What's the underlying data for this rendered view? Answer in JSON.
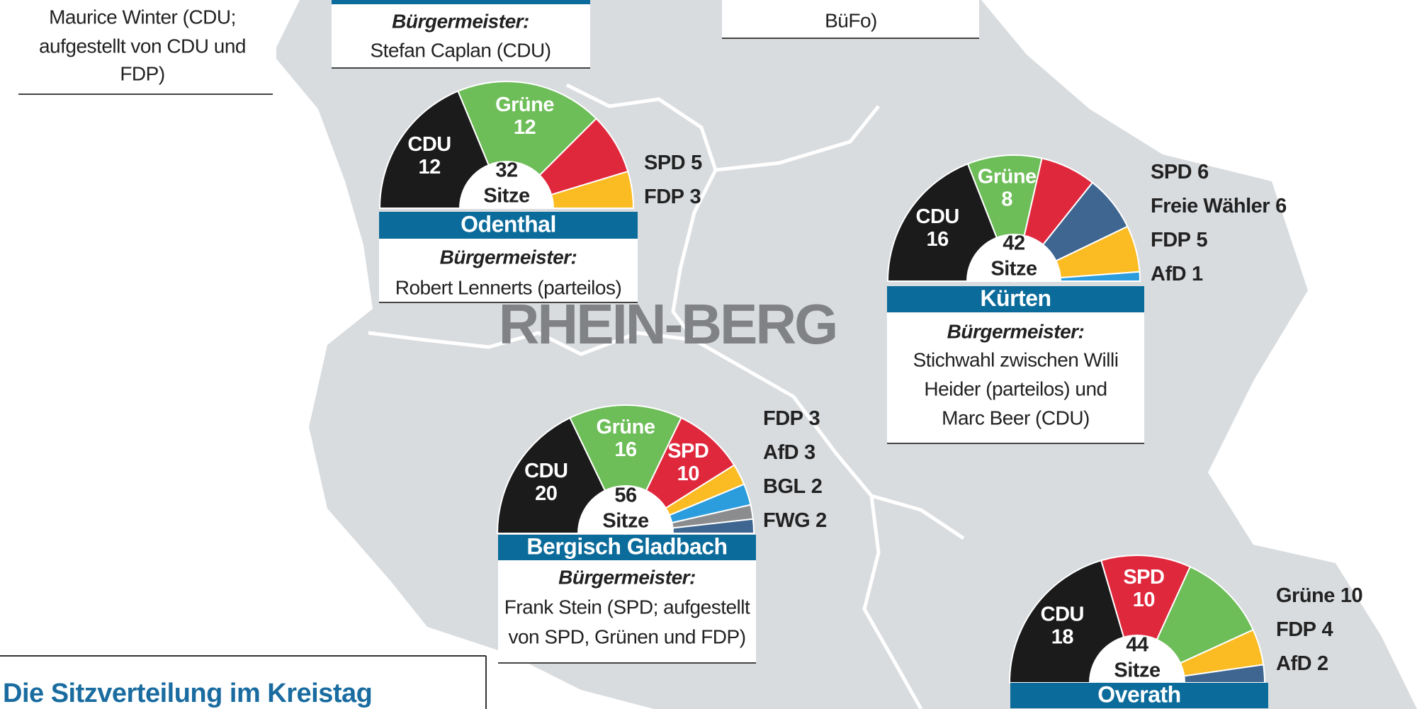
{
  "map_label": "RHEIN-BERG",
  "top_left": {
    "lines": [
      "Maurice Winter (CDU;",
      "aufgestellt von CDU und",
      "FDP)"
    ]
  },
  "top_center": {
    "mayor_heading": "Bürgermeister:",
    "mayor": "Stefan Caplan (CDU)"
  },
  "top_right": {
    "lines": [
      "BüFo)"
    ]
  },
  "kreistag_title": "Die Sitzverteilung im Kreistag",
  "chart_data": [
    {
      "type": "semicircle",
      "title": "Odenthal",
      "total": 32,
      "total_label": "Sitze",
      "categories": [
        "CDU",
        "Grüne",
        "SPD",
        "FDP"
      ],
      "values": [
        12,
        12,
        5,
        3
      ],
      "colors": [
        "#1b1b1b",
        "#6dbd58",
        "#e0283d",
        "#fbbb22"
      ],
      "mayor_heading": "Bürgermeister:",
      "mayor_lines": [
        "Robert Lennerts (parteilos)"
      ]
    },
    {
      "type": "semicircle",
      "title": "Kürten",
      "total": 42,
      "total_label": "Sitze",
      "categories": [
        "CDU",
        "Grüne",
        "SPD",
        "Freie Wähler",
        "FDP",
        "AfD"
      ],
      "values": [
        16,
        8,
        6,
        6,
        5,
        1
      ],
      "colors": [
        "#1b1b1b",
        "#6dbd58",
        "#e0283d",
        "#3f6591",
        "#fbbb22",
        "#2b9cdc"
      ],
      "mayor_heading": "Bürgermeister:",
      "mayor_lines": [
        "Stichwahl zwischen Willi",
        "Heider (parteilos) und",
        "Marc Beer (CDU)"
      ]
    },
    {
      "type": "semicircle",
      "title": "Bergisch Gladbach",
      "total": 56,
      "total_label": "Sitze",
      "categories": [
        "CDU",
        "Grüne",
        "SPD",
        "FDP",
        "AfD",
        "BGL",
        "FWG"
      ],
      "values": [
        20,
        16,
        10,
        3,
        3,
        2,
        2
      ],
      "colors": [
        "#1b1b1b",
        "#6dbd58",
        "#e0283d",
        "#fbbb22",
        "#2b9cdc",
        "#8a8c8e",
        "#3f6591"
      ],
      "mayor_heading": "Bürgermeister:",
      "mayor_lines": [
        "Frank Stein (SPD; aufgestellt",
        "von SPD, Grünen und FDP)"
      ]
    },
    {
      "type": "semicircle",
      "title": "Overath",
      "total": 44,
      "total_label": "Sitze",
      "categories": [
        "CDU",
        "SPD",
        "Grüne",
        "FDP",
        "AfD"
      ],
      "values": [
        18,
        10,
        10,
        4,
        2
      ],
      "colors": [
        "#1b1b1b",
        "#e0283d",
        "#6dbd58",
        "#fbbb22",
        "#3f6591"
      ]
    }
  ]
}
